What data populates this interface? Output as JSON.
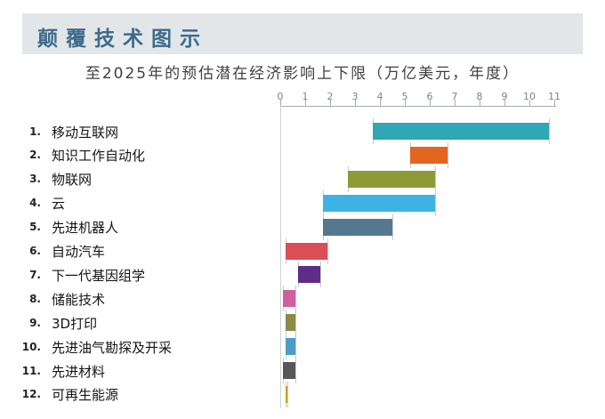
{
  "header": {
    "title": "颠覆技术图示"
  },
  "chart_data": {
    "type": "bar",
    "subtype": "horizontal-range",
    "title": "颠覆技术图示",
    "subtitle": "至2025年的预估潜在经济影响上下限（万亿美元，年度）",
    "value_unit": "万亿美元/年",
    "xlim": [
      0,
      11
    ],
    "x_ticks": [
      "0",
      "1",
      "2",
      "3",
      "4",
      "5",
      "6",
      "7",
      "8",
      "9",
      "10",
      "11"
    ],
    "grid": false,
    "legend": "none",
    "items": [
      {
        "rank": "1.",
        "label": "移动互联网",
        "range": [
          3.7,
          10.8
        ],
        "color": "#2FA7B4"
      },
      {
        "rank": "2.",
        "label": "知识工作自动化",
        "range": [
          5.2,
          6.7
        ],
        "color": "#E2661F"
      },
      {
        "rank": "3.",
        "label": "物联网",
        "range": [
          2.7,
          6.2
        ],
        "color": "#8C9B35"
      },
      {
        "rank": "4.",
        "label": "云",
        "range": [
          1.7,
          6.2
        ],
        "color": "#3EB2E4"
      },
      {
        "rank": "5.",
        "label": "先进机器人",
        "range": [
          1.7,
          4.5
        ],
        "color": "#54788E"
      },
      {
        "rank": "6.",
        "label": "自动汽车",
        "range": [
          0.2,
          1.9
        ],
        "color": "#D94F55"
      },
      {
        "rank": "7.",
        "label": "下一代基因组学",
        "range": [
          0.7,
          1.6
        ],
        "color": "#5E2D87"
      },
      {
        "rank": "8.",
        "label": "储能技术",
        "range": [
          0.1,
          0.6
        ],
        "color": "#D05FA2"
      },
      {
        "rank": "9.",
        "label": "3D打印",
        "range": [
          0.2,
          0.6
        ],
        "color": "#8B8A46"
      },
      {
        "rank": "10.",
        "label": "先进油气勘探及开采",
        "range": [
          0.2,
          0.6
        ],
        "color": "#4D9CC8"
      },
      {
        "rank": "11.",
        "label": "先进材料",
        "range": [
          0.1,
          0.6
        ],
        "color": "#575757"
      },
      {
        "rank": "12.",
        "label": "可再生能源",
        "range": [
          0.2,
          0.3
        ],
        "color": "#C7A322"
      }
    ]
  },
  "style": {
    "band_color": "#e3e6e8",
    "title_color": "#3c6b8e",
    "axis_color": "#a9adb0",
    "tick_label_color": "#808285"
  }
}
